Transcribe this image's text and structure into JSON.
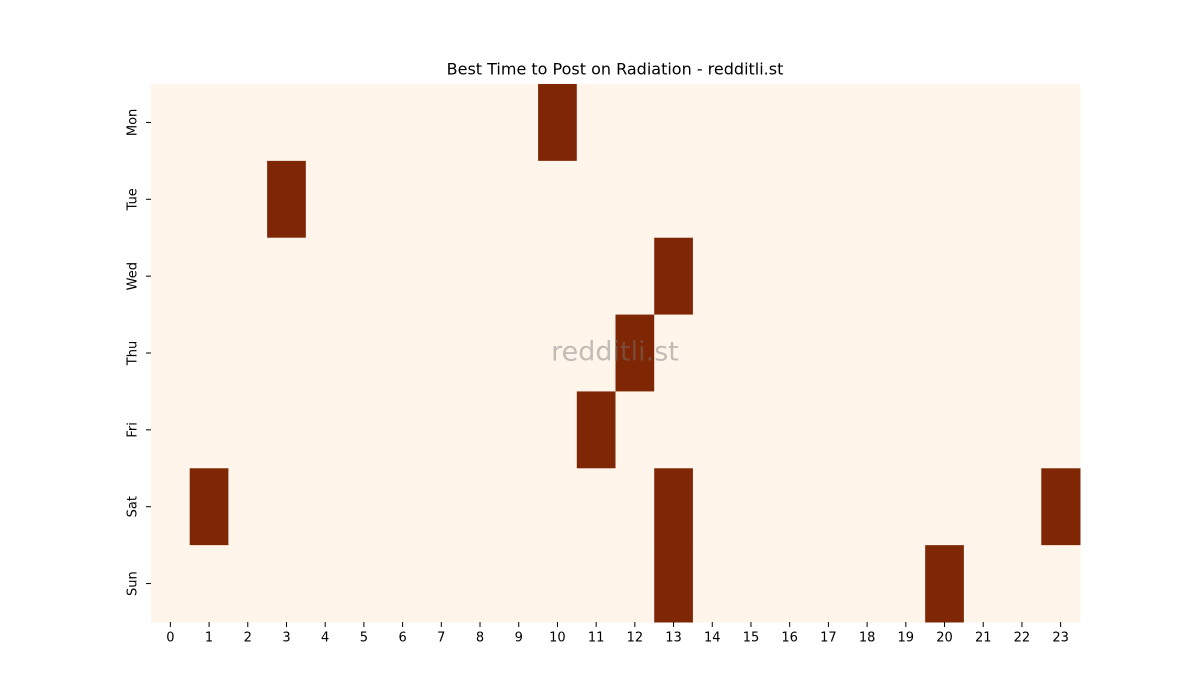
{
  "chart_data": {
    "type": "heatmap",
    "title": "Best Time to Post on Radiation - redditli.st",
    "watermark": "redditli.st",
    "x_categories": [
      "0",
      "1",
      "2",
      "3",
      "4",
      "5",
      "6",
      "7",
      "8",
      "9",
      "10",
      "11",
      "12",
      "13",
      "14",
      "15",
      "16",
      "17",
      "18",
      "19",
      "20",
      "21",
      "22",
      "23"
    ],
    "y_categories": [
      "Mon",
      "Tue",
      "Wed",
      "Thu",
      "Fri",
      "Sat",
      "Sun"
    ],
    "values": [
      [
        0,
        0,
        0,
        0,
        0,
        0,
        0,
        0,
        0,
        0,
        1,
        0,
        0,
        0,
        0,
        0,
        0,
        0,
        0,
        0,
        0,
        0,
        0,
        0
      ],
      [
        0,
        0,
        0,
        1,
        0,
        0,
        0,
        0,
        0,
        0,
        0,
        0,
        0,
        0,
        0,
        0,
        0,
        0,
        0,
        0,
        0,
        0,
        0,
        0
      ],
      [
        0,
        0,
        0,
        0,
        0,
        0,
        0,
        0,
        0,
        0,
        0,
        0,
        0,
        1,
        0,
        0,
        0,
        0,
        0,
        0,
        0,
        0,
        0,
        0
      ],
      [
        0,
        0,
        0,
        0,
        0,
        0,
        0,
        0,
        0,
        0,
        0,
        0,
        1,
        0,
        0,
        0,
        0,
        0,
        0,
        0,
        0,
        0,
        0,
        0
      ],
      [
        0,
        0,
        0,
        0,
        0,
        0,
        0,
        0,
        0,
        0,
        0,
        1,
        0,
        0,
        0,
        0,
        0,
        0,
        0,
        0,
        0,
        0,
        0,
        0
      ],
      [
        0,
        1,
        0,
        0,
        0,
        0,
        0,
        0,
        0,
        0,
        0,
        0,
        0,
        1,
        0,
        0,
        0,
        0,
        0,
        0,
        0,
        0,
        0,
        1
      ],
      [
        0,
        0,
        0,
        0,
        0,
        0,
        0,
        0,
        0,
        0,
        0,
        0,
        0,
        1,
        0,
        0,
        0,
        0,
        0,
        0,
        1,
        0,
        0,
        0
      ]
    ],
    "colormap": [
      "#fff5eb",
      "#7f2704"
    ]
  }
}
